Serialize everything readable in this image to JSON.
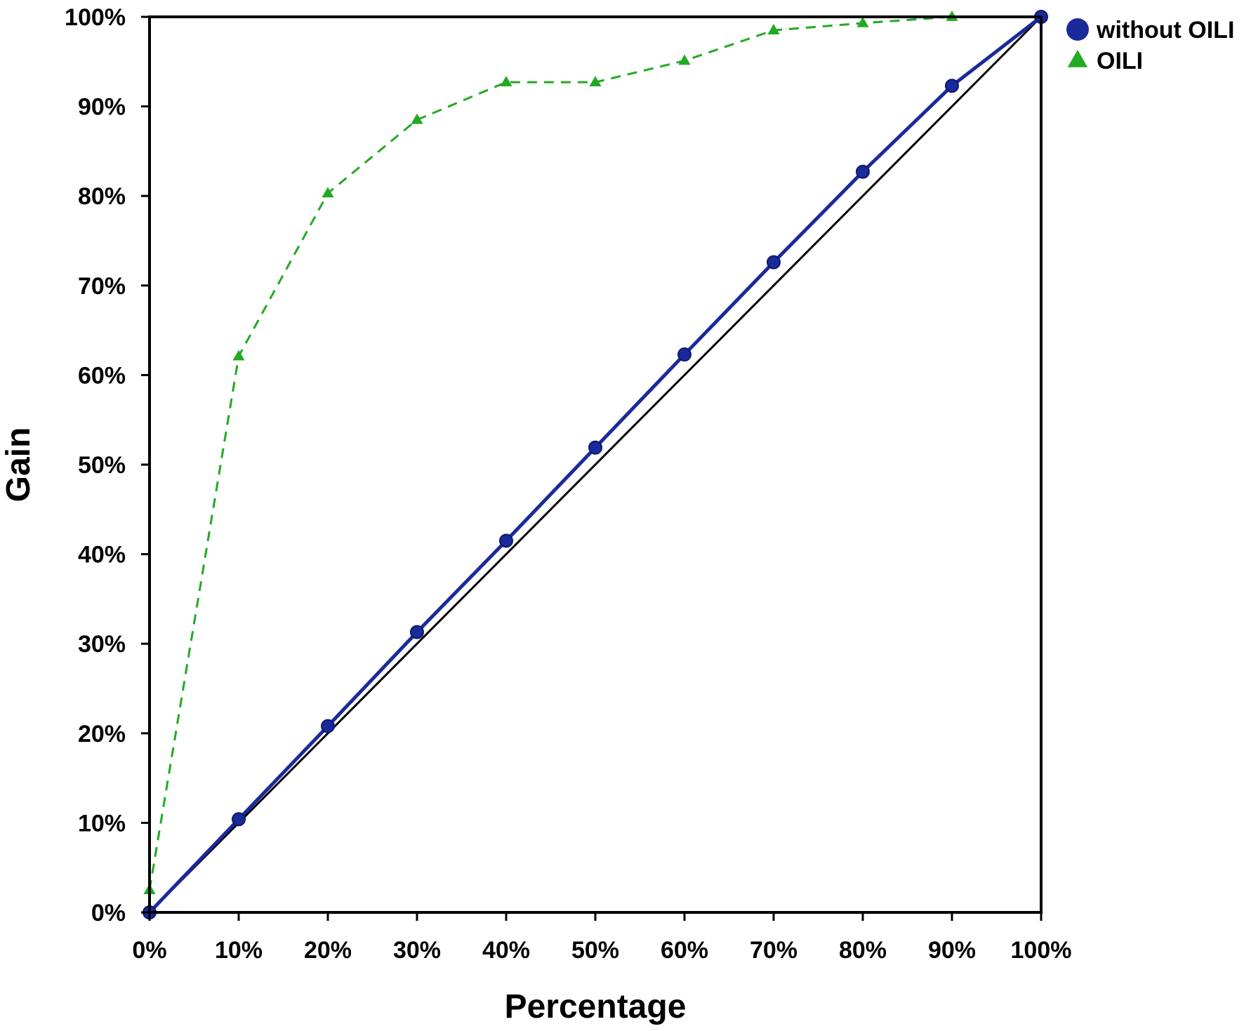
{
  "chart_data": {
    "type": "line",
    "title": "",
    "xlabel": "Percentage",
    "ylabel": "Gain",
    "xlim": [
      0,
      100
    ],
    "ylim": [
      0,
      100
    ],
    "x_ticks": [
      "0%",
      "10%",
      "20%",
      "30%",
      "40%",
      "50%",
      "60%",
      "70%",
      "80%",
      "90%",
      "100%"
    ],
    "y_ticks": [
      "0%",
      "10%",
      "20%",
      "30%",
      "40%",
      "50%",
      "60%",
      "70%",
      "80%",
      "90%",
      "100%"
    ],
    "grid": false,
    "legend_position": "top-right-outside",
    "reference_line": {
      "name": "baseline",
      "x": [
        0,
        100
      ],
      "y": [
        0,
        100
      ],
      "color": "#000000"
    },
    "series": [
      {
        "name": "without OILI",
        "marker": "circle",
        "line_style": "solid",
        "color": "#1a2a9a",
        "x": [
          0,
          10,
          20,
          30,
          40,
          50,
          60,
          70,
          80,
          90,
          100
        ],
        "y": [
          0,
          10.4,
          20.8,
          31.3,
          41.5,
          51.9,
          62.3,
          72.6,
          82.7,
          92.3,
          100
        ]
      },
      {
        "name": "OILI",
        "marker": "triangle",
        "line_style": "dashed",
        "color": "#22aa22",
        "x": [
          0,
          10,
          20,
          30,
          40,
          50,
          60,
          70,
          80,
          90,
          100
        ],
        "y": [
          2.5,
          62.1,
          80.3,
          88.5,
          92.7,
          92.7,
          95.1,
          98.5,
          99.3,
          100,
          100
        ]
      }
    ]
  }
}
